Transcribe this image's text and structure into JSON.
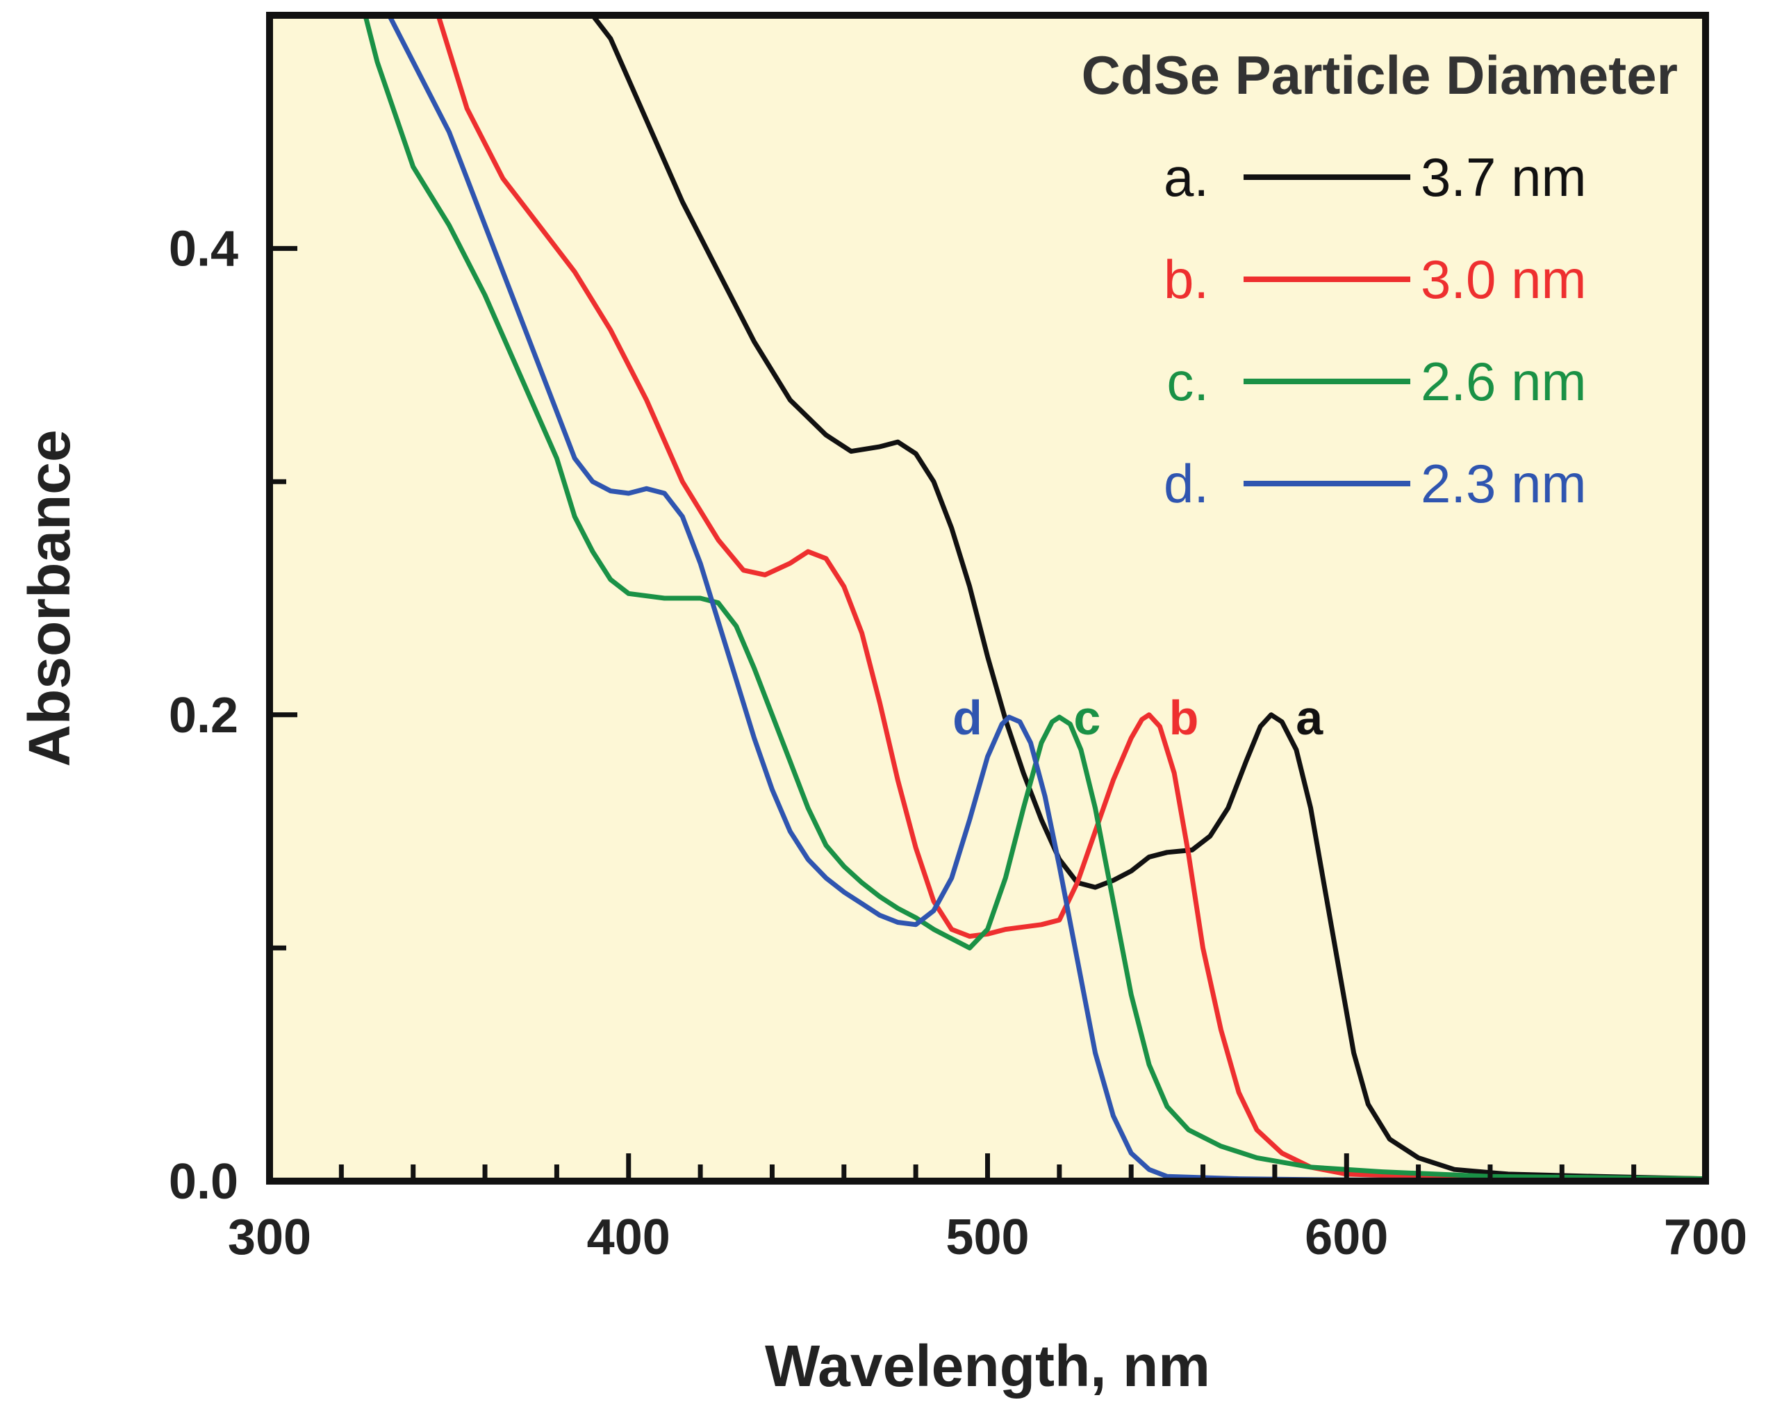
{
  "chart_data": {
    "type": "line",
    "title": "",
    "xlabel": "Wavelength, nm",
    "ylabel": "Absorbance",
    "xlim": [
      300,
      700
    ],
    "ylim": [
      0,
      0.5
    ],
    "x_ticks": [
      "300",
      "400",
      "500",
      "600",
      "700"
    ],
    "y_ticks": [
      "0.0",
      "0.2",
      "0.4"
    ],
    "plot_background": "#fdf7d6",
    "legend": {
      "title": "CdSe Particle Diameter",
      "position": "top-right"
    },
    "series": [
      {
        "id": "a",
        "legend_prefix": "a.",
        "name": "3.7 nm",
        "color": "#111111",
        "peak_label": "a",
        "points": [
          [
            385,
            0.51
          ],
          [
            395,
            0.49
          ],
          [
            405,
            0.455
          ],
          [
            415,
            0.42
          ],
          [
            425,
            0.39
          ],
          [
            435,
            0.36
          ],
          [
            445,
            0.335
          ],
          [
            455,
            0.32
          ],
          [
            462,
            0.313
          ],
          [
            470,
            0.315
          ],
          [
            475,
            0.317
          ],
          [
            480,
            0.312
          ],
          [
            485,
            0.3
          ],
          [
            490,
            0.28
          ],
          [
            495,
            0.255
          ],
          [
            500,
            0.225
          ],
          [
            505,
            0.198
          ],
          [
            510,
            0.175
          ],
          [
            515,
            0.155
          ],
          [
            520,
            0.138
          ],
          [
            525,
            0.128
          ],
          [
            530,
            0.126
          ],
          [
            535,
            0.129
          ],
          [
            540,
            0.133
          ],
          [
            545,
            0.139
          ],
          [
            550,
            0.141
          ],
          [
            557,
            0.142
          ],
          [
            562,
            0.148
          ],
          [
            567,
            0.16
          ],
          [
            572,
            0.18
          ],
          [
            576,
            0.195
          ],
          [
            579,
            0.2
          ],
          [
            582,
            0.197
          ],
          [
            586,
            0.185
          ],
          [
            590,
            0.16
          ],
          [
            594,
            0.125
          ],
          [
            598,
            0.09
          ],
          [
            602,
            0.055
          ],
          [
            606,
            0.033
          ],
          [
            612,
            0.018
          ],
          [
            620,
            0.01
          ],
          [
            630,
            0.005
          ],
          [
            645,
            0.003
          ],
          [
            670,
            0.002
          ],
          [
            700,
            0.001
          ]
        ]
      },
      {
        "id": "b",
        "legend_prefix": "b.",
        "name": "3.0 nm",
        "color": "#ee2f2f",
        "peak_label": "b",
        "points": [
          [
            345,
            0.51
          ],
          [
            355,
            0.46
          ],
          [
            365,
            0.43
          ],
          [
            375,
            0.41
          ],
          [
            385,
            0.39
          ],
          [
            395,
            0.365
          ],
          [
            405,
            0.335
          ],
          [
            415,
            0.3
          ],
          [
            425,
            0.275
          ],
          [
            432,
            0.262
          ],
          [
            438,
            0.26
          ],
          [
            445,
            0.265
          ],
          [
            450,
            0.27
          ],
          [
            455,
            0.267
          ],
          [
            460,
            0.255
          ],
          [
            465,
            0.235
          ],
          [
            470,
            0.205
          ],
          [
            475,
            0.172
          ],
          [
            480,
            0.143
          ],
          [
            485,
            0.12
          ],
          [
            490,
            0.108
          ],
          [
            495,
            0.105
          ],
          [
            500,
            0.106
          ],
          [
            505,
            0.108
          ],
          [
            510,
            0.109
          ],
          [
            515,
            0.11
          ],
          [
            520,
            0.112
          ],
          [
            525,
            0.128
          ],
          [
            530,
            0.15
          ],
          [
            535,
            0.172
          ],
          [
            540,
            0.19
          ],
          [
            543,
            0.198
          ],
          [
            545,
            0.2
          ],
          [
            548,
            0.195
          ],
          [
            552,
            0.175
          ],
          [
            556,
            0.14
          ],
          [
            560,
            0.1
          ],
          [
            565,
            0.065
          ],
          [
            570,
            0.038
          ],
          [
            575,
            0.022
          ],
          [
            582,
            0.012
          ],
          [
            590,
            0.006
          ],
          [
            600,
            0.003
          ],
          [
            620,
            0.002
          ],
          [
            650,
            0.001
          ],
          [
            700,
            0.0005
          ]
        ]
      },
      {
        "id": "c",
        "legend_prefix": "c.",
        "name": "2.6 nm",
        "color": "#1a9146",
        "peak_label": "c",
        "points": [
          [
            325,
            0.51
          ],
          [
            330,
            0.48
          ],
          [
            340,
            0.435
          ],
          [
            350,
            0.41
          ],
          [
            360,
            0.38
          ],
          [
            370,
            0.345
          ],
          [
            380,
            0.31
          ],
          [
            385,
            0.285
          ],
          [
            390,
            0.27
          ],
          [
            395,
            0.258
          ],
          [
            400,
            0.252
          ],
          [
            410,
            0.25
          ],
          [
            420,
            0.25
          ],
          [
            425,
            0.248
          ],
          [
            430,
            0.238
          ],
          [
            435,
            0.22
          ],
          [
            440,
            0.2
          ],
          [
            445,
            0.18
          ],
          [
            450,
            0.16
          ],
          [
            455,
            0.144
          ],
          [
            460,
            0.135
          ],
          [
            465,
            0.128
          ],
          [
            470,
            0.122
          ],
          [
            475,
            0.117
          ],
          [
            480,
            0.113
          ],
          [
            485,
            0.108
          ],
          [
            490,
            0.104
          ],
          [
            495,
            0.1
          ],
          [
            500,
            0.108
          ],
          [
            505,
            0.13
          ],
          [
            510,
            0.16
          ],
          [
            515,
            0.188
          ],
          [
            518,
            0.197
          ],
          [
            520,
            0.199
          ],
          [
            523,
            0.196
          ],
          [
            526,
            0.185
          ],
          [
            530,
            0.16
          ],
          [
            535,
            0.12
          ],
          [
            540,
            0.08
          ],
          [
            545,
            0.05
          ],
          [
            550,
            0.032
          ],
          [
            556,
            0.022
          ],
          [
            565,
            0.015
          ],
          [
            575,
            0.01
          ],
          [
            590,
            0.006
          ],
          [
            610,
            0.004
          ],
          [
            640,
            0.002
          ],
          [
            700,
            0.001
          ]
        ]
      },
      {
        "id": "d",
        "legend_prefix": "d.",
        "name": "2.3 nm",
        "color": "#2f55b0",
        "peak_label": "d",
        "points": [
          [
            330,
            0.51
          ],
          [
            340,
            0.48
          ],
          [
            350,
            0.45
          ],
          [
            360,
            0.41
          ],
          [
            370,
            0.37
          ],
          [
            380,
            0.33
          ],
          [
            385,
            0.31
          ],
          [
            390,
            0.3
          ],
          [
            395,
            0.296
          ],
          [
            400,
            0.295
          ],
          [
            405,
            0.297
          ],
          [
            410,
            0.295
          ],
          [
            415,
            0.285
          ],
          [
            420,
            0.265
          ],
          [
            425,
            0.24
          ],
          [
            430,
            0.215
          ],
          [
            435,
            0.19
          ],
          [
            440,
            0.168
          ],
          [
            445,
            0.15
          ],
          [
            450,
            0.138
          ],
          [
            455,
            0.13
          ],
          [
            460,
            0.124
          ],
          [
            465,
            0.119
          ],
          [
            470,
            0.114
          ],
          [
            475,
            0.111
          ],
          [
            480,
            0.11
          ],
          [
            485,
            0.116
          ],
          [
            490,
            0.13
          ],
          [
            495,
            0.155
          ],
          [
            500,
            0.182
          ],
          [
            504,
            0.196
          ],
          [
            506,
            0.199
          ],
          [
            509,
            0.197
          ],
          [
            512,
            0.188
          ],
          [
            516,
            0.165
          ],
          [
            520,
            0.135
          ],
          [
            525,
            0.095
          ],
          [
            530,
            0.055
          ],
          [
            535,
            0.028
          ],
          [
            540,
            0.012
          ],
          [
            545,
            0.005
          ],
          [
            550,
            0.002
          ],
          [
            570,
            0.001
          ],
          [
            600,
            0.0005
          ],
          [
            700,
            0.0003
          ]
        ]
      }
    ]
  }
}
